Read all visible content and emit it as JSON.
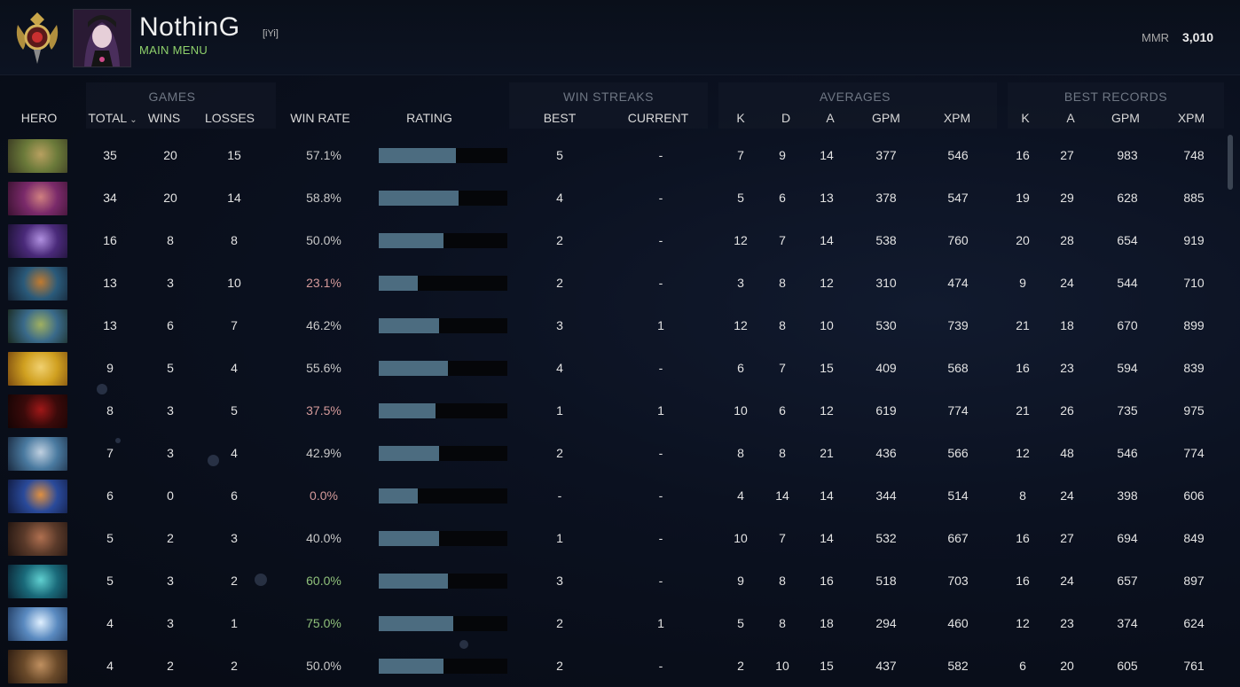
{
  "header": {
    "player_name": "NothinG",
    "player_tag": "[iYi]",
    "main_menu_label": "MAIN MENU",
    "mmr_label": "MMR",
    "mmr_value": "3,010"
  },
  "groups": {
    "games": "GAMES",
    "win_streaks": "WIN STREAKS",
    "averages": "AVERAGES",
    "best_records": "BEST RECORDS"
  },
  "columns": {
    "hero": "HERO",
    "total": "TOTAL",
    "sort_icon": "chevron-down-icon",
    "wins": "WINS",
    "losses": "LOSSES",
    "win_rate": "WIN RATE",
    "rating": "RATING",
    "best": "BEST",
    "current": "CURRENT",
    "avg_k": "K",
    "avg_d": "D",
    "avg_a": "A",
    "avg_gpm": "GPM",
    "avg_xpm": "XPM",
    "best_k": "K",
    "best_a": "A",
    "best_gpm": "GPM",
    "best_xpm": "XPM"
  },
  "colors": {
    "win_rate_good": "#8fc07a",
    "win_rate_bad": "#d49a9a",
    "rating_bar": "#4c6c80",
    "accent_green": "#8fd16b"
  },
  "rows": [
    {
      "total": "35",
      "wins": "20",
      "losses": "15",
      "win_rate": "57.1%",
      "wr_style": "normal",
      "rating": 0.6,
      "best": "5",
      "current": "-",
      "k": "7",
      "d": "9",
      "a": "14",
      "gpm": "377",
      "xpm": "546",
      "bk": "16",
      "ba": "27",
      "bgpm": "983",
      "bxpm": "748",
      "portrait": [
        "#6b7a3a",
        "#b8a060",
        "#3a3a22"
      ]
    },
    {
      "total": "34",
      "wins": "20",
      "losses": "14",
      "win_rate": "58.8%",
      "wr_style": "normal",
      "rating": 0.62,
      "best": "4",
      "current": "-",
      "k": "5",
      "d": "6",
      "a": "13",
      "gpm": "378",
      "xpm": "547",
      "bk": "19",
      "ba": "29",
      "bgpm": "628",
      "bxpm": "885",
      "portrait": [
        "#7a2a6a",
        "#d08080",
        "#3a1230"
      ]
    },
    {
      "total": "16",
      "wins": "8",
      "losses": "8",
      "win_rate": "50.0%",
      "wr_style": "normal",
      "rating": 0.5,
      "best": "2",
      "current": "-",
      "k": "12",
      "d": "7",
      "a": "14",
      "gpm": "538",
      "xpm": "760",
      "bk": "20",
      "ba": "28",
      "bgpm": "654",
      "bxpm": "919",
      "portrait": [
        "#4a2a7a",
        "#b090e0",
        "#1a1030"
      ]
    },
    {
      "total": "13",
      "wins": "3",
      "losses": "10",
      "win_rate": "23.1%",
      "wr_style": "bad",
      "rating": 0.3,
      "best": "2",
      "current": "-",
      "k": "3",
      "d": "8",
      "a": "12",
      "gpm": "310",
      "xpm": "474",
      "bk": "9",
      "ba": "24",
      "bgpm": "544",
      "bxpm": "710",
      "portrait": [
        "#2a5a7a",
        "#c07a30",
        "#142030"
      ]
    },
    {
      "total": "13",
      "wins": "6",
      "losses": "7",
      "win_rate": "46.2%",
      "wr_style": "normal",
      "rating": 0.47,
      "best": "3",
      "current": "1",
      "k": "12",
      "d": "8",
      "a": "10",
      "gpm": "530",
      "xpm": "739",
      "bk": "21",
      "ba": "18",
      "bgpm": "670",
      "bxpm": "899",
      "portrait": [
        "#3a6a8a",
        "#a0b060",
        "#1a2a20"
      ]
    },
    {
      "total": "9",
      "wins": "5",
      "losses": "4",
      "win_rate": "55.6%",
      "wr_style": "normal",
      "rating": 0.54,
      "best": "4",
      "current": "-",
      "k": "6",
      "d": "7",
      "a": "15",
      "gpm": "409",
      "xpm": "568",
      "bk": "16",
      "ba": "23",
      "bgpm": "594",
      "bxpm": "839",
      "portrait": [
        "#d0a020",
        "#f0d070",
        "#7a4a10"
      ]
    },
    {
      "total": "8",
      "wins": "3",
      "losses": "5",
      "win_rate": "37.5%",
      "wr_style": "bad",
      "rating": 0.44,
      "best": "1",
      "current": "1",
      "k": "10",
      "d": "6",
      "a": "12",
      "gpm": "619",
      "xpm": "774",
      "bk": "21",
      "ba": "26",
      "bgpm": "735",
      "bxpm": "975",
      "portrait": [
        "#3a0a0a",
        "#a01818",
        "#140404"
      ]
    },
    {
      "total": "7",
      "wins": "3",
      "losses": "4",
      "win_rate": "42.9%",
      "wr_style": "normal",
      "rating": 0.47,
      "best": "2",
      "current": "-",
      "k": "8",
      "d": "8",
      "a": "21",
      "gpm": "436",
      "xpm": "566",
      "bk": "12",
      "ba": "48",
      "bgpm": "546",
      "bxpm": "774",
      "portrait": [
        "#4a7aa0",
        "#c0d0e0",
        "#1a2a40"
      ]
    },
    {
      "total": "6",
      "wins": "0",
      "losses": "6",
      "win_rate": "0.0%",
      "wr_style": "bad",
      "rating": 0.3,
      "best": "-",
      "current": "-",
      "k": "4",
      "d": "14",
      "a": "14",
      "gpm": "344",
      "xpm": "514",
      "bk": "8",
      "ba": "24",
      "bgpm": "398",
      "bxpm": "606",
      "portrait": [
        "#2a4a9a",
        "#e09040",
        "#101a40"
      ]
    },
    {
      "total": "5",
      "wins": "2",
      "losses": "3",
      "win_rate": "40.0%",
      "wr_style": "normal",
      "rating": 0.47,
      "best": "1",
      "current": "-",
      "k": "10",
      "d": "7",
      "a": "14",
      "gpm": "532",
      "xpm": "667",
      "bk": "16",
      "ba": "27",
      "bgpm": "694",
      "bxpm": "849",
      "portrait": [
        "#5a3a2a",
        "#b07050",
        "#201410"
      ]
    },
    {
      "total": "5",
      "wins": "3",
      "losses": "2",
      "win_rate": "60.0%",
      "wr_style": "good",
      "rating": 0.54,
      "best": "3",
      "current": "-",
      "k": "9",
      "d": "8",
      "a": "16",
      "gpm": "518",
      "xpm": "703",
      "bk": "16",
      "ba": "24",
      "bgpm": "657",
      "bxpm": "897",
      "portrait": [
        "#1a6a7a",
        "#60d0d0",
        "#0a2030"
      ]
    },
    {
      "total": "4",
      "wins": "3",
      "losses": "1",
      "win_rate": "75.0%",
      "wr_style": "good",
      "rating": 0.58,
      "best": "2",
      "current": "1",
      "k": "5",
      "d": "8",
      "a": "18",
      "gpm": "294",
      "xpm": "460",
      "bk": "12",
      "ba": "23",
      "bgpm": "374",
      "bxpm": "624",
      "portrait": [
        "#5a8ac0",
        "#e0f0ff",
        "#203a60"
      ]
    },
    {
      "total": "4",
      "wins": "2",
      "losses": "2",
      "win_rate": "50.0%",
      "wr_style": "normal",
      "rating": 0.5,
      "best": "2",
      "current": "-",
      "k": "2",
      "d": "10",
      "a": "15",
      "gpm": "437",
      "xpm": "582",
      "bk": "6",
      "ba": "20",
      "bgpm": "605",
      "bxpm": "761",
      "portrait": [
        "#6a4a2a",
        "#c09060",
        "#2a1a10"
      ]
    }
  ]
}
